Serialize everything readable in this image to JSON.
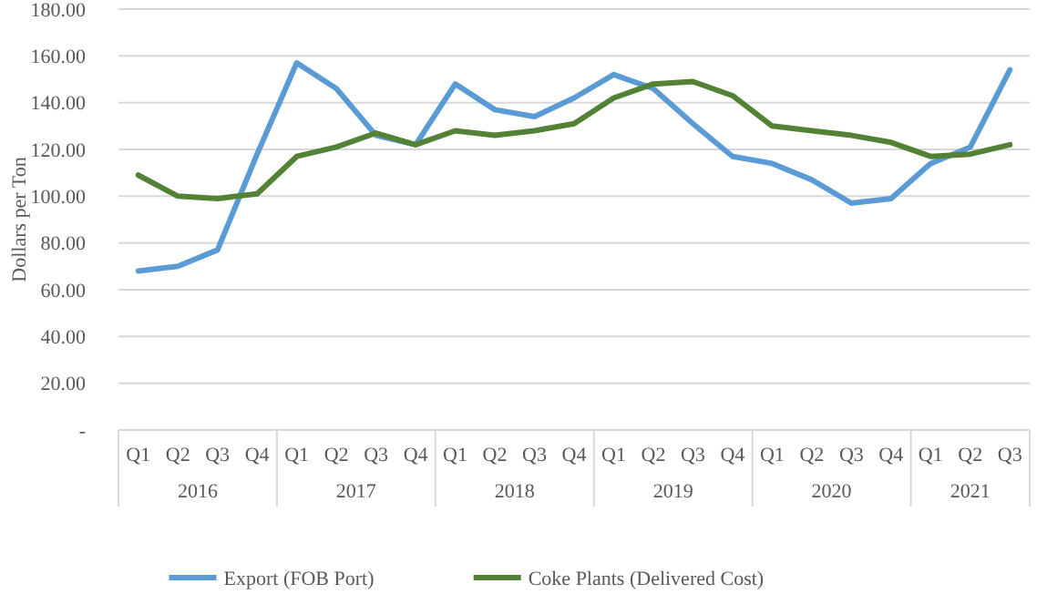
{
  "chart_data": {
    "type": "line",
    "ylabel": "Dollars per Ton",
    "categories": [
      "Q1",
      "Q2",
      "Q3",
      "Q4",
      "Q1",
      "Q2",
      "Q3",
      "Q4",
      "Q1",
      "Q2",
      "Q3",
      "Q4",
      "Q1",
      "Q2",
      "Q3",
      "Q4",
      "Q1",
      "Q2",
      "Q3",
      "Q4",
      "Q1",
      "Q2",
      "Q3"
    ],
    "annotations": [
      "2016",
      "2017",
      "2018",
      "2019",
      "2020",
      "2021"
    ],
    "series": [
      {
        "name": "Export (FOB Port)",
        "color": "#5b9bd5",
        "values": [
          68,
          70,
          77,
          118,
          157,
          146,
          126,
          122,
          148,
          137,
          134,
          142,
          152,
          146,
          131,
          117,
          114,
          107,
          97,
          99,
          114,
          121,
          154
        ]
      },
      {
        "name": "Coke Plants (Delivered Cost)",
        "color": "#538135",
        "values": [
          109,
          100,
          99,
          101,
          117,
          121,
          127,
          122,
          128,
          126,
          128,
          131,
          142,
          148,
          149,
          143,
          130,
          128,
          126,
          123,
          117,
          118,
          122
        ]
      }
    ],
    "ylim": [
      0,
      180
    ],
    "yticks": [
      {
        "value": 0,
        "label": "-"
      },
      {
        "value": 20,
        "label": "20.00"
      },
      {
        "value": 40,
        "label": "40.00"
      },
      {
        "value": 60,
        "label": "60.00"
      },
      {
        "value": 80,
        "label": "80.00"
      },
      {
        "value": 100,
        "label": "100.00"
      },
      {
        "value": 120,
        "label": "120.00"
      },
      {
        "value": 140,
        "label": "140.00"
      },
      {
        "value": 160,
        "label": "160.00"
      },
      {
        "value": 180,
        "label": "180.00"
      }
    ],
    "grid": "y",
    "legend": "bottom",
    "marker": "none",
    "line_style": "solid"
  }
}
